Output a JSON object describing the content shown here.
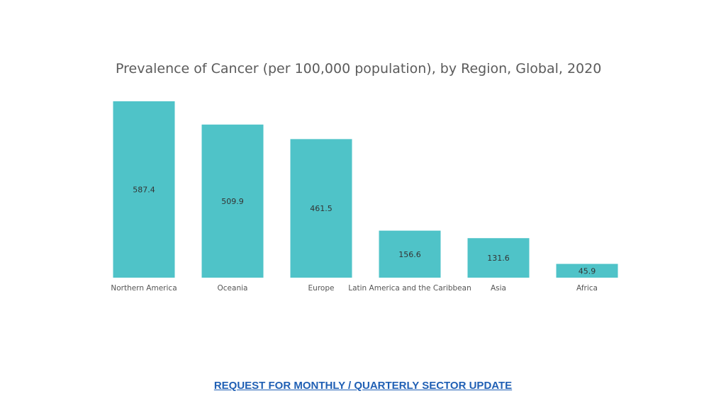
{
  "chart_data": {
    "type": "bar",
    "title": "Prevalence of Cancer (per 100,000 population), by Region, Global, 2020",
    "categories": [
      "Northern America",
      "Oceania",
      "Europe",
      "Latin America and the Caribbean",
      "Asia",
      "Africa"
    ],
    "values": [
      587.4,
      509.9,
      461.5,
      156.6,
      131.6,
      45.9
    ],
    "value_labels": [
      "587.4",
      "509.9",
      "461.5",
      "156.6",
      "131.6",
      "45.9"
    ],
    "xlabel": "",
    "ylabel": "",
    "ylim": [
      0,
      587.4
    ],
    "grid": false,
    "legend": "none",
    "colors": {
      "bar": "#4fc3c8"
    }
  },
  "footer": {
    "link_text": "REQUEST FOR MONTHLY / QUARTERLY SECTOR UPDATE"
  }
}
